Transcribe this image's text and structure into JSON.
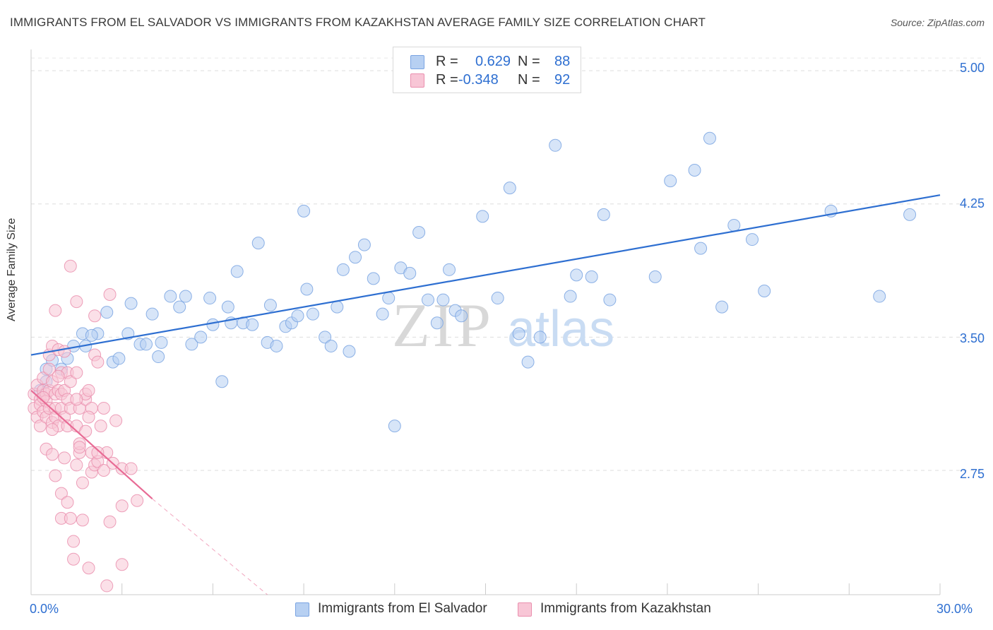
{
  "title": "IMMIGRANTS FROM EL SALVADOR VS IMMIGRANTS FROM KAZAKHSTAN AVERAGE FAMILY SIZE CORRELATION CHART",
  "source": "Source: ZipAtlas.com",
  "legend": {
    "r_label": "R =",
    "n_label": "N =",
    "series1": {
      "r": "0.629",
      "n": "88"
    },
    "series2": {
      "r": "-0.348",
      "n": "92"
    }
  },
  "colors": {
    "blue": "#7aa4e2",
    "blue_fill": "#b7d0f2",
    "blue_line": "#2e6fd1",
    "pink": "#ea8fae",
    "pink_fill": "#f8c6d6",
    "pink_line": "#e86b95"
  },
  "watermark": {
    "zip": "ZIP",
    "atlas": "atlas"
  },
  "chart_data": {
    "type": "scatter",
    "title": "IMMIGRANTS FROM EL SALVADOR VS IMMIGRANTS FROM KAZAKHSTAN AVERAGE FAMILY SIZE CORRELATION CHART",
    "xlabel": "",
    "ylabel": "Average Family Size",
    "xlim": [
      0,
      30
    ],
    "ylim": [
      2.05,
      5.12
    ],
    "x_tick_labels": [
      "0.0%",
      "30.0%"
    ],
    "y_ticks": [
      2.75,
      3.5,
      4.25,
      5.0
    ],
    "y_tick_labels": [
      "2.75",
      "3.50",
      "4.25",
      "5.00"
    ],
    "grid": true,
    "legend_position": "top-center",
    "series": [
      {
        "name": "Immigrants from El Salvador",
        "color": "#7aa4e2",
        "trend": {
          "x0": 0,
          "y0": 3.4,
          "x1": 30,
          "y1": 4.3
        },
        "points": [
          [
            0.5,
            3.25
          ],
          [
            0.5,
            3.32
          ],
          [
            0.7,
            3.37
          ],
          [
            1.2,
            3.38
          ],
          [
            1.4,
            3.45
          ],
          [
            1.7,
            3.52
          ],
          [
            1.8,
            3.45
          ],
          [
            2.2,
            3.52
          ],
          [
            2.5,
            3.64
          ],
          [
            2.7,
            3.36
          ],
          [
            2.9,
            3.38
          ],
          [
            3.2,
            3.52
          ],
          [
            3.3,
            3.69
          ],
          [
            3.6,
            3.46
          ],
          [
            3.8,
            3.46
          ],
          [
            4.0,
            3.63
          ],
          [
            4.2,
            3.39
          ],
          [
            4.3,
            3.47
          ],
          [
            4.6,
            3.73
          ],
          [
            4.9,
            3.67
          ],
          [
            5.1,
            3.73
          ],
          [
            5.3,
            3.46
          ],
          [
            5.6,
            3.5
          ],
          [
            5.9,
            3.72
          ],
          [
            6.0,
            3.57
          ],
          [
            6.3,
            3.25
          ],
          [
            6.5,
            3.67
          ],
          [
            6.8,
            3.87
          ],
          [
            7.0,
            3.58
          ],
          [
            7.3,
            3.57
          ],
          [
            7.5,
            4.03
          ],
          [
            7.8,
            3.47
          ],
          [
            7.9,
            3.68
          ],
          [
            8.1,
            3.45
          ],
          [
            8.4,
            3.56
          ],
          [
            8.6,
            3.58
          ],
          [
            8.8,
            3.62
          ],
          [
            9.0,
            4.21
          ],
          [
            9.1,
            3.77
          ],
          [
            9.3,
            3.63
          ],
          [
            9.7,
            3.5
          ],
          [
            9.9,
            3.45
          ],
          [
            10.1,
            3.67
          ],
          [
            10.3,
            3.88
          ],
          [
            10.5,
            3.42
          ],
          [
            10.7,
            3.95
          ],
          [
            11.0,
            4.02
          ],
          [
            11.3,
            3.83
          ],
          [
            11.6,
            3.63
          ],
          [
            11.8,
            3.72
          ],
          [
            12.0,
            3.0
          ],
          [
            12.2,
            3.89
          ],
          [
            12.5,
            3.86
          ],
          [
            12.8,
            4.09
          ],
          [
            13.1,
            3.71
          ],
          [
            13.4,
            3.58
          ],
          [
            13.6,
            3.71
          ],
          [
            13.8,
            3.88
          ],
          [
            14.0,
            3.65
          ],
          [
            14.2,
            3.62
          ],
          [
            14.9,
            4.18
          ],
          [
            15.4,
            3.72
          ],
          [
            15.8,
            4.34
          ],
          [
            16.1,
            3.52
          ],
          [
            16.4,
            3.36
          ],
          [
            16.8,
            3.5
          ],
          [
            17.3,
            4.58
          ],
          [
            17.8,
            3.73
          ],
          [
            18.0,
            3.85
          ],
          [
            18.9,
            4.19
          ],
          [
            18.5,
            3.84
          ],
          [
            19.1,
            3.71
          ],
          [
            20.6,
            3.84
          ],
          [
            21.1,
            4.38
          ],
          [
            21.9,
            4.44
          ],
          [
            22.1,
            4.0
          ],
          [
            22.4,
            4.62
          ],
          [
            22.8,
            3.67
          ],
          [
            23.2,
            4.13
          ],
          [
            23.8,
            4.05
          ],
          [
            24.2,
            3.76
          ],
          [
            26.4,
            4.21
          ],
          [
            28.0,
            3.73
          ],
          [
            29.0,
            4.19
          ],
          [
            0.3,
            3.2
          ],
          [
            1.0,
            3.32
          ],
          [
            2.0,
            3.51
          ],
          [
            6.6,
            3.58
          ]
        ]
      },
      {
        "name": "Immigrants from Kazakhstan",
        "color": "#ea8fae",
        "trend": {
          "x0": 0,
          "y0": 3.2,
          "x1": 4.0,
          "y1": 2.59,
          "dash_to_x": 7.8,
          "dash_to_y": 2.05
        },
        "points": [
          [
            0.1,
            3.18
          ],
          [
            0.1,
            3.1
          ],
          [
            0.2,
            3.23
          ],
          [
            0.2,
            3.05
          ],
          [
            0.3,
            3.15
          ],
          [
            0.3,
            3.0
          ],
          [
            0.3,
            3.12
          ],
          [
            0.4,
            3.2
          ],
          [
            0.4,
            3.08
          ],
          [
            0.4,
            3.27
          ],
          [
            0.5,
            3.18
          ],
          [
            0.5,
            3.05
          ],
          [
            0.5,
            3.14
          ],
          [
            0.5,
            2.87
          ],
          [
            0.6,
            3.2
          ],
          [
            0.6,
            3.1
          ],
          [
            0.6,
            3.32
          ],
          [
            0.6,
            3.4
          ],
          [
            0.7,
            3.45
          ],
          [
            0.7,
            3.25
          ],
          [
            0.7,
            3.02
          ],
          [
            0.7,
            2.84
          ],
          [
            0.8,
            3.18
          ],
          [
            0.8,
            3.1
          ],
          [
            0.8,
            3.05
          ],
          [
            0.8,
            2.72
          ],
          [
            0.8,
            3.65
          ],
          [
            0.9,
            3.43
          ],
          [
            0.9,
            3.2
          ],
          [
            0.9,
            3.0
          ],
          [
            1.0,
            3.1
          ],
          [
            1.0,
            3.3
          ],
          [
            1.0,
            3.18
          ],
          [
            1.0,
            2.62
          ],
          [
            1.0,
            2.48
          ],
          [
            1.1,
            3.42
          ],
          [
            1.1,
            3.2
          ],
          [
            1.1,
            3.05
          ],
          [
            1.1,
            2.82
          ],
          [
            1.2,
            3.3
          ],
          [
            1.2,
            3.15
          ],
          [
            1.2,
            3.0
          ],
          [
            1.2,
            2.57
          ],
          [
            1.3,
            3.25
          ],
          [
            1.3,
            3.1
          ],
          [
            1.3,
            2.48
          ],
          [
            1.3,
            3.9
          ],
          [
            1.4,
            2.35
          ],
          [
            1.4,
            2.25
          ],
          [
            1.5,
            3.3
          ],
          [
            1.5,
            3.7
          ],
          [
            1.5,
            3.0
          ],
          [
            1.5,
            2.78
          ],
          [
            1.6,
            2.85
          ],
          [
            1.6,
            2.9
          ],
          [
            1.6,
            3.1
          ],
          [
            1.6,
            2.88
          ],
          [
            1.7,
            2.68
          ],
          [
            1.7,
            2.47
          ],
          [
            1.8,
            3.15
          ],
          [
            1.8,
            2.97
          ],
          [
            1.8,
            3.18
          ],
          [
            1.9,
            3.2
          ],
          [
            1.9,
            2.2
          ],
          [
            2.0,
            3.1
          ],
          [
            2.0,
            2.85
          ],
          [
            2.0,
            2.74
          ],
          [
            2.1,
            3.4
          ],
          [
            2.1,
            3.62
          ],
          [
            2.1,
            2.78
          ],
          [
            2.2,
            2.8
          ],
          [
            2.2,
            3.36
          ],
          [
            2.3,
            3.0
          ],
          [
            2.4,
            3.1
          ],
          [
            2.4,
            2.75
          ],
          [
            2.5,
            2.85
          ],
          [
            2.5,
            2.1
          ],
          [
            2.6,
            2.46
          ],
          [
            2.7,
            2.79
          ],
          [
            2.8,
            3.03
          ],
          [
            3.0,
            2.76
          ],
          [
            3.0,
            2.55
          ],
          [
            3.0,
            2.22
          ],
          [
            3.3,
            2.76
          ],
          [
            3.5,
            2.58
          ],
          [
            2.6,
            3.74
          ],
          [
            1.5,
            3.15
          ],
          [
            0.9,
            3.28
          ],
          [
            0.7,
            2.98
          ],
          [
            1.9,
            3.05
          ],
          [
            2.2,
            2.85
          ],
          [
            0.4,
            3.16
          ]
        ]
      }
    ]
  },
  "bottom_legend": {
    "s1": "Immigrants from El Salvador",
    "s2": "Immigrants from Kazakhstan"
  }
}
